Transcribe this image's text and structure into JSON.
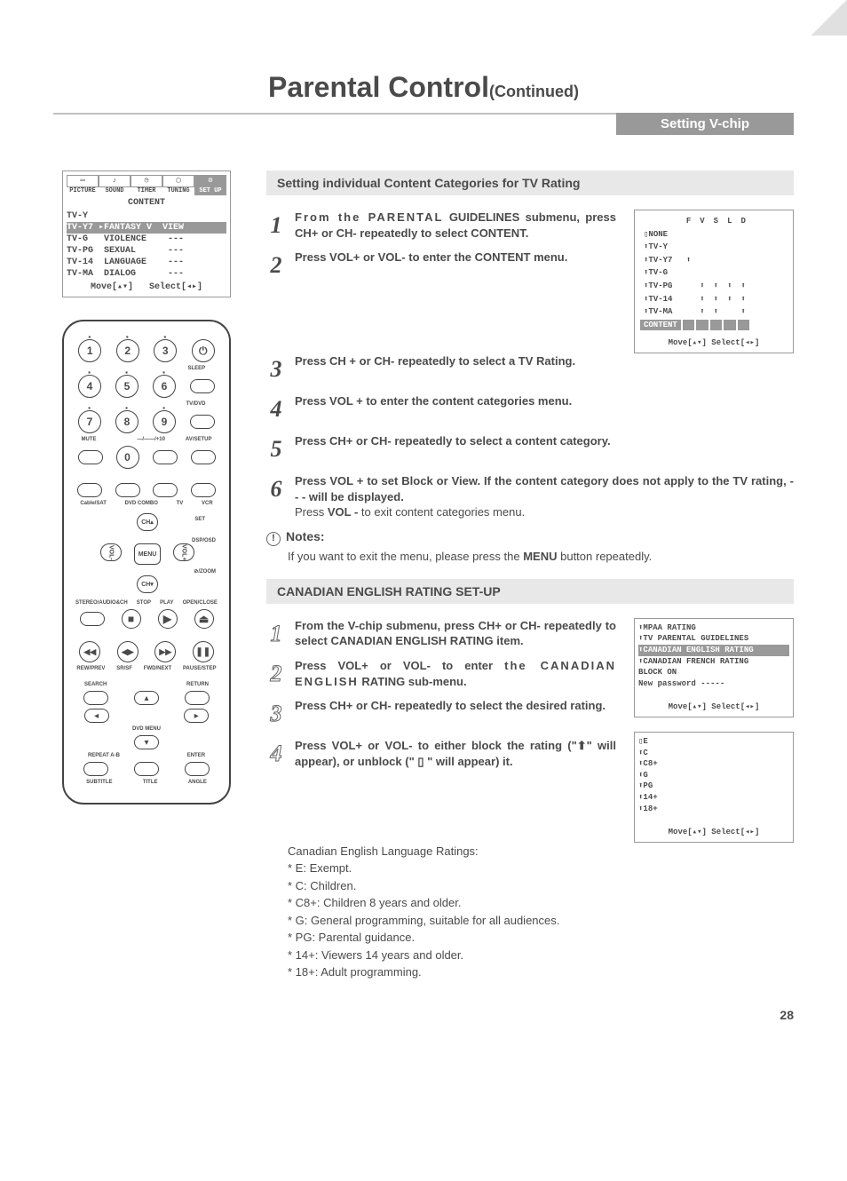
{
  "page_number": "28",
  "title": "Parental Control",
  "title_suffix": "(Continued)",
  "section_tab": "Setting V-chip",
  "osd_top": {
    "icon_labels": [
      "PICTURE",
      "SOUND",
      "TIMER",
      "TUNING",
      "SET UP"
    ],
    "heading": "CONTENT",
    "rows": [
      {
        "t": "TV-Y",
        "sel": false
      },
      {
        "t": "TV-Y7 ▸FANTASY V  VIEW",
        "sel": true
      },
      {
        "t": "TV-G   VIOLENCE    ---",
        "sel": false
      },
      {
        "t": "TV-PG  SEXUAL      ---",
        "sel": false
      },
      {
        "t": "TV-14  LANGUAGE    ---",
        "sel": false
      },
      {
        "t": "TV-MA  DIALOG      ---",
        "sel": false
      }
    ],
    "nav": "Move[▴▾]   Select[◂▸]"
  },
  "remote": {
    "numbers": [
      [
        "1",
        "2",
        "3"
      ],
      [
        "4",
        "5",
        "6"
      ],
      [
        "7",
        "8",
        "9"
      ]
    ],
    "zero": "0",
    "labels": {
      "sleep": "SLEEP",
      "tvdvd": "TV/DVD",
      "mute": "MUTE",
      "plus10": "—/——/+10",
      "avsetup": "AV/SETUP",
      "cable": "Cable/SAT",
      "dvdcombo": "DVD COMBO",
      "tv": "TV",
      "vcr": "VCR",
      "set": "SET",
      "ch": "CH",
      "menu": "MENU",
      "vol": "VOL",
      "dsposd": "DSP/OSD",
      "zoom": "⊘/ZOOM",
      "stereo": "STEREO/AUDIO&CH",
      "stop": "STOP",
      "play": "PLAY",
      "open": "OPEN/CLOSE",
      "rew": "REW/PREV",
      "sr": "SR/SF",
      "fwd": "FWD/NEXT",
      "pause": "PAUSE/STEP",
      "search": "SEARCH",
      "ret": "RETURN",
      "dvdmenu": "DVD MENU",
      "repeat": "REPEAT A-B",
      "enter": "ENTER",
      "subtitle": "SUBTITLE",
      "titlel": "TITLE",
      "angle": "ANGLE"
    }
  },
  "banner1": "Setting individual Content Categories for TV Rating",
  "steps1": [
    "From the PARENTAL GUIDELINES submenu, press CH+ or CH- repeatedly to select CONTENT.",
    "Press VOL+ or VOL- to enter the CONTENT menu.",
    "Press CH + or CH- repeatedly to select a TV Rating.",
    "Press VOL + to enter the content categories menu.",
    "Press CH+ or CH- repeatedly to select a content category.",
    "Press VOL + to set Block or View. If the content category does not apply to the TV rating, - - - will be displayed."
  ],
  "step6_extra": "Press VOL - to exit content categories menu.",
  "notes_heading": "Notes:",
  "notes_text": "If you want to exit the menu, please press the MENU button repeatedly.",
  "tvbox": {
    "header": [
      "",
      "F",
      "V",
      "S",
      "L",
      "D"
    ],
    "rows": [
      {
        "cells": [
          "▯NONE",
          "",
          "",
          "",
          "",
          ""
        ],
        "sel": false
      },
      {
        "cells": [
          "⬆TV-Y",
          "",
          "",
          "",
          "",
          ""
        ],
        "sel": false
      },
      {
        "cells": [
          "⬆TV-Y7",
          "⬆",
          "",
          "",
          "",
          ""
        ],
        "sel": false
      },
      {
        "cells": [
          "⬆TV-G",
          "",
          "",
          "",
          "",
          ""
        ],
        "sel": false
      },
      {
        "cells": [
          "⬆TV-PG",
          "",
          "⬆",
          "⬆",
          "⬆",
          "⬆"
        ],
        "sel": false
      },
      {
        "cells": [
          "⬆TV-14",
          "",
          "⬆",
          "⬆",
          "⬆",
          "⬆"
        ],
        "sel": false
      },
      {
        "cells": [
          "⬆TV-MA",
          "",
          "⬆",
          "⬆",
          "",
          "⬆"
        ],
        "sel": false
      },
      {
        "cells": [
          "CONTENT",
          "",
          "",
          "",
          "",
          ""
        ],
        "sel": true
      }
    ],
    "nav": "Move[▴▾]  Select[◂▸]"
  },
  "banner2": "CANADIAN ENGLISH RATING SET-UP",
  "steps2": [
    "From the V-chip submenu, press CH+ or CH- repeatedly to select CANADIAN ENGLISH RATING item.",
    "Press VOL+ or VOL- to enter the CANADIAN ENGLISH RATING sub-menu.",
    "Press CH+ or CH- repeatedly to select the desired rating.",
    "Press VOL+ or VOL- to either block the rating (\"⬆\" will appear), or unblock (\" ▯ \" will appear) it."
  ],
  "ratings_intro": "Canadian English Language Ratings:",
  "ratings": [
    "* E: Exempt.",
    "* C: Children.",
    "* C8+: Children 8 years and older.",
    "* G: General programming, suitable for all audiences.",
    "* PG: Parental guidance.",
    "* 14+: Viewers 14 years and older.",
    "* 18+: Adult programming."
  ],
  "vchipbox": {
    "rows": [
      {
        "t": "⬆MPAA RATING",
        "sel": false
      },
      {
        "t": "⬆TV PARENTAL GUIDELINES",
        "sel": false
      },
      {
        "t": "⬆CANADIAN ENGLISH RATING",
        "sel": true
      },
      {
        "t": "⬆CANADIAN FRENCH RATING",
        "sel": false
      },
      {
        "t": "BLOCK          ON",
        "sel": false
      },
      {
        "t": "New password  -----",
        "sel": false
      }
    ],
    "nav": "Move[▴▾]  Select[◂▸]"
  },
  "cerbox": {
    "rows": [
      "▯E",
      "⬆C",
      "⬆C8+",
      "⬆G",
      "⬆PG",
      "⬆14+",
      "⬆18+"
    ],
    "nav": "Move[▴▾]  Select[◂▸]"
  }
}
